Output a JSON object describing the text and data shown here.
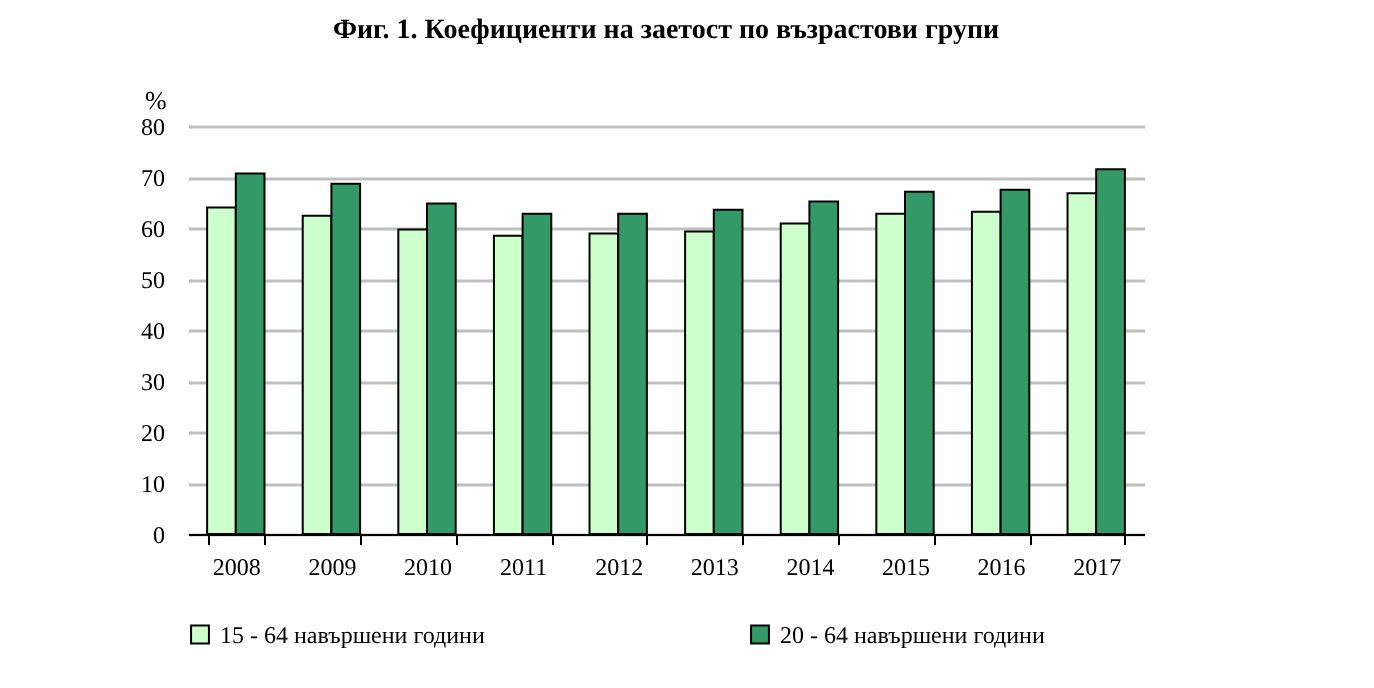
{
  "chart_data": {
    "type": "bar",
    "title": "Фиг. 1. Коефициенти на заетост по възрастови групи",
    "ylabel": "%",
    "categories": [
      "2008",
      "2009",
      "2010",
      "2011",
      "2012",
      "2013",
      "2014",
      "2015",
      "2016",
      "2017"
    ],
    "series": [
      {
        "name": "15 - 64 навършени години",
        "color": "#ccffcc",
        "values": [
          64.0,
          62.4,
          59.7,
          58.5,
          58.9,
          59.3,
          60.9,
          62.8,
          63.2,
          66.8
        ]
      },
      {
        "name": "20 - 64 навършени години",
        "color": "#339966",
        "values": [
          70.7,
          68.7,
          64.8,
          62.8,
          62.8,
          63.6,
          65.2,
          67.1,
          67.5,
          71.5
        ]
      }
    ],
    "ylim": [
      0,
      80
    ],
    "yticks": [
      0,
      10,
      20,
      30,
      40,
      50,
      60,
      70,
      80
    ],
    "grid": "y",
    "legend": "bottom"
  }
}
